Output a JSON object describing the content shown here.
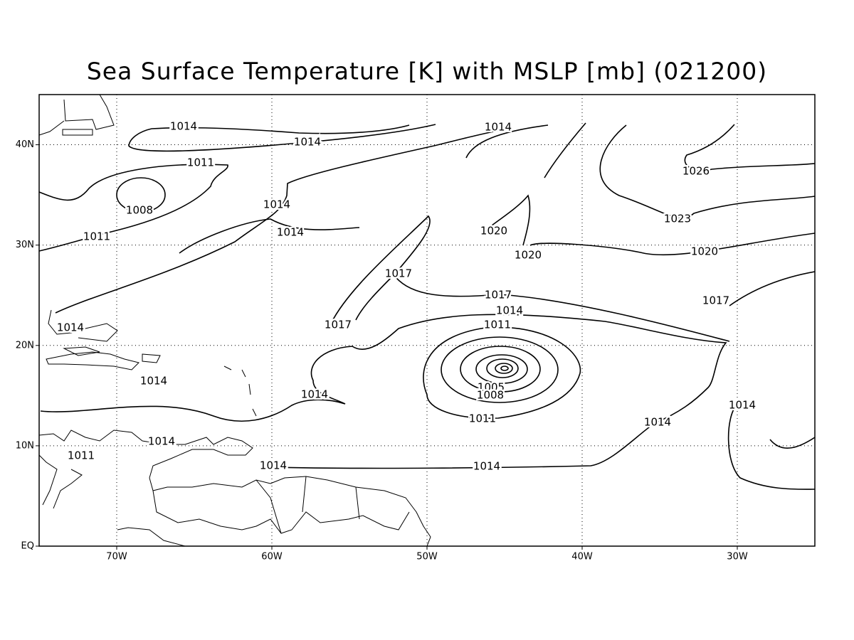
{
  "map": {
    "title": "Sea Surface Temperature [K] with MSLP [mb] (021200)",
    "lon_range": [
      -75,
      -25
    ],
    "lat_range": [
      0,
      45
    ],
    "lon_ticks": [
      {
        "value": -70,
        "label": "70W"
      },
      {
        "value": -60,
        "label": "60W"
      },
      {
        "value": -50,
        "label": "50W"
      },
      {
        "value": -40,
        "label": "40W"
      },
      {
        "value": -30,
        "label": "30W"
      }
    ],
    "lat_ticks": [
      {
        "value": 0,
        "label": "EQ"
      },
      {
        "value": 10,
        "label": "10N"
      },
      {
        "value": 20,
        "label": "20N"
      },
      {
        "value": 30,
        "label": "30N"
      },
      {
        "value": 40,
        "label": "40N"
      }
    ],
    "grid": true,
    "contour_labels": [
      1014,
      1014,
      1014,
      1011,
      1008,
      1014,
      1014,
      1011,
      1020,
      1020,
      1026,
      1023,
      1020,
      1017,
      1017,
      1017,
      1017,
      1014,
      1014,
      1011,
      1014,
      1014,
      1005,
      1008,
      1011,
      1014,
      1014,
      1014,
      1011,
      1014,
      1014
    ]
  }
}
